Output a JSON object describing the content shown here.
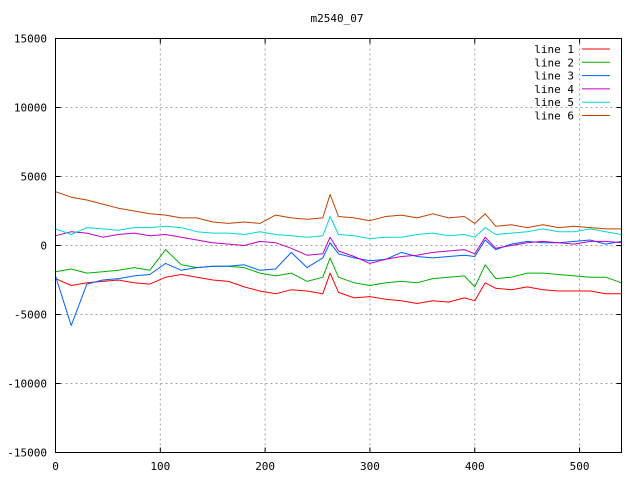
{
  "chart_data": {
    "type": "line",
    "title": "m2540_07",
    "xlabel": "",
    "ylabel": "",
    "xlim": [
      0,
      540
    ],
    "ylim": [
      -15000,
      15000
    ],
    "xticks": [
      0,
      100,
      200,
      300,
      400,
      500
    ],
    "yticks": [
      -15000,
      -10000,
      -5000,
      0,
      5000,
      10000,
      15000
    ],
    "grid": true,
    "legend_position": "top-right",
    "x": [
      0,
      15,
      30,
      45,
      60,
      75,
      90,
      105,
      120,
      135,
      150,
      165,
      180,
      195,
      210,
      225,
      240,
      255,
      262,
      270,
      285,
      300,
      315,
      330,
      345,
      360,
      375,
      390,
      400,
      410,
      420,
      435,
      450,
      465,
      480,
      495,
      510,
      525,
      540
    ],
    "series": [
      {
        "name": "line 1",
        "color": "#ff0000",
        "values": [
          -2400,
          -2900,
          -2700,
          -2600,
          -2500,
          -2700,
          -2800,
          -2300,
          -2100,
          -2300,
          -2500,
          -2600,
          -3000,
          -3300,
          -3500,
          -3200,
          -3300,
          -3500,
          -2000,
          -3400,
          -3800,
          -3700,
          -3900,
          -4000,
          -4200,
          -4000,
          -4100,
          -3800,
          -4000,
          -2700,
          -3100,
          -3200,
          -3000,
          -3200,
          -3300,
          -3300,
          -3300,
          -3500,
          -3500
        ]
      },
      {
        "name": "line 2",
        "color": "#00b000",
        "values": [
          -1900,
          -1700,
          -2000,
          -1900,
          -1800,
          -1600,
          -1800,
          -300,
          -1400,
          -1600,
          -1500,
          -1500,
          -1600,
          -2000,
          -2200,
          -2000,
          -2600,
          -2300,
          -900,
          -2300,
          -2700,
          -2900,
          -2700,
          -2600,
          -2700,
          -2400,
          -2300,
          -2200,
          -3000,
          -1400,
          -2400,
          -2300,
          -2000,
          -2000,
          -2100,
          -2200,
          -2300,
          -2300,
          -2700
        ]
      },
      {
        "name": "line 3",
        "color": "#0060ff",
        "values": [
          -2200,
          -5800,
          -2800,
          -2500,
          -2400,
          -2200,
          -2100,
          -1300,
          -1800,
          -1600,
          -1500,
          -1500,
          -1400,
          -1800,
          -1700,
          -500,
          -1600,
          -900,
          200,
          -600,
          -900,
          -1100,
          -1000,
          -500,
          -800,
          -900,
          -800,
          -700,
          -800,
          400,
          -300,
          100,
          300,
          200,
          200,
          300,
          400,
          100,
          300
        ]
      },
      {
        "name": "line 4",
        "color": "#c000c0",
        "values": [
          700,
          1000,
          900,
          600,
          800,
          900,
          700,
          800,
          600,
          400,
          200,
          100,
          0,
          300,
          200,
          -200,
          -700,
          -600,
          600,
          -400,
          -800,
          -1300,
          -1000,
          -800,
          -700,
          -500,
          -400,
          -300,
          -600,
          600,
          -200,
          0,
          200,
          300,
          200,
          100,
          300,
          300,
          200
        ]
      },
      {
        "name": "line 5",
        "color": "#00d8d8",
        "values": [
          1200,
          800,
          1300,
          1200,
          1100,
          1300,
          1300,
          1400,
          1300,
          1000,
          900,
          900,
          800,
          1000,
          800,
          700,
          600,
          700,
          2100,
          800,
          700,
          500,
          600,
          600,
          800,
          900,
          700,
          800,
          600,
          1300,
          800,
          900,
          1000,
          1200,
          1000,
          1000,
          1200,
          1000,
          800
        ]
      },
      {
        "name": "line 6",
        "color": "#c04000",
        "values": [
          3900,
          3500,
          3300,
          3000,
          2700,
          2500,
          2300,
          2200,
          2000,
          2000,
          1700,
          1600,
          1700,
          1600,
          2200,
          2000,
          1900,
          2000,
          3700,
          2100,
          2000,
          1800,
          2100,
          2200,
          2000,
          2300,
          2000,
          2100,
          1600,
          2300,
          1400,
          1500,
          1300,
          1500,
          1300,
          1400,
          1300,
          1200,
          1200
        ]
      }
    ]
  }
}
